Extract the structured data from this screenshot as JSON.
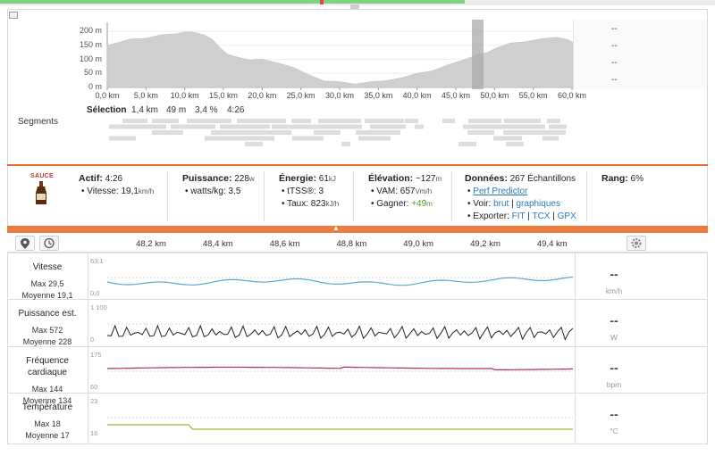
{
  "elevation": {
    "y_ticks": [
      "200 m",
      "150 m",
      "100 m",
      "50 m",
      "0 m"
    ],
    "x_ticks": [
      "0,0 km",
      "5,0 km",
      "10,0 km",
      "15,0 km",
      "20,0 km",
      "25,0 km",
      "30,0 km",
      "35,0 km",
      "40,0 km",
      "45,0 km",
      "50,0 km",
      "55,0 km",
      "60,0 km"
    ],
    "stats": [
      "--",
      "--",
      "--",
      "--"
    ],
    "selection": {
      "label": "Sélection",
      "distance": "1,4 km",
      "gain": "49 m",
      "grade": "3,4 %",
      "time": "4:26"
    }
  },
  "segments_label": "Segments",
  "summary": {
    "brand": "SAUCE",
    "active": {
      "title": "Actif:",
      "value": "4:26",
      "speed_label": "• Vitesse:",
      "speed": "19,1",
      "speed_unit": "km/h"
    },
    "power": {
      "title": "Puissance:",
      "value": "228",
      "unit": "w",
      "wkg_label": "• watts/kg:",
      "wkg": "3,5"
    },
    "energy": {
      "title": "Énergie:",
      "value": "61",
      "unit": "kJ",
      "tss_label": "• tTSS®:",
      "tss": "3",
      "rate_label": "• Taux:",
      "rate": "823",
      "rate_unit": "kJ/h"
    },
    "elevation": {
      "title": "Élévation:",
      "value": "~127",
      "unit": "m",
      "vam_label": "• VAM:",
      "vam": "657",
      "vam_unit": "Vm/h",
      "gain_label": "• Gagner:",
      "gain": "+49",
      "gain_unit": "m"
    },
    "data": {
      "title": "Données:",
      "value": "267 Échantillons",
      "perf": "Perf Predictor",
      "view_label": "• Voir:",
      "raw": "brut",
      "sep": "|",
      "graphs": "graphiques",
      "export_label": "• Exporter:",
      "fit": "FIT",
      "tcx": "TCX",
      "gpx": "GPX"
    },
    "rank": {
      "title": "Rang:",
      "value": "6%"
    }
  },
  "timeline": {
    "x_ticks": [
      "48,2 km",
      "48,4 km",
      "48,6 km",
      "48,8 km",
      "49,0 km",
      "49,2 km",
      "49,4 km"
    ]
  },
  "metrics": [
    {
      "name": "Vitesse",
      "max": "Max 29,5",
      "avg": "Moyenne 19,1",
      "ymax": "63,1",
      "ymin": "0,0",
      "right": "--",
      "unit": "km/h",
      "color": "#5aa6d6"
    },
    {
      "name": "Puissance est.",
      "max": "Max 572",
      "avg": "Moyenne 228",
      "ymax": "1 100",
      "ymin": "0",
      "right": "--",
      "unit": "W",
      "color": "#222222"
    },
    {
      "name": "Fréquence cardiaque",
      "max": "Max 144",
      "avg": "Moyenne 134",
      "ymax": "175",
      "ymin": "60",
      "right": "--",
      "unit": "bpm",
      "color": "#b0304a"
    },
    {
      "name": "Température",
      "max": "Max 18",
      "avg": "Moyenne 17",
      "ymax": "23",
      "ymin": "16",
      "right": "--",
      "unit": "°C",
      "color": "#a8b040"
    }
  ],
  "colors": {
    "accent": "#ee6a2d",
    "link": "#2a7ab8",
    "elevation_fill": "#cfcfcf",
    "selection": "#a8a8a8"
  },
  "icons": [
    "expand-icon",
    "map-pin-icon",
    "clock-icon",
    "gear-icon",
    "chevron-up-icon",
    "bottle-icon"
  ]
}
